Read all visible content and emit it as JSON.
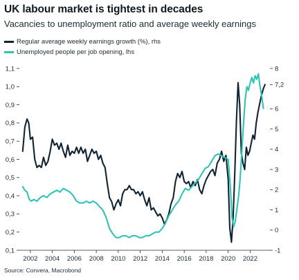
{
  "title": "UK labour market is tightest in decades",
  "subtitle": "Vacancies to unemployment ratio and average weekly earnings",
  "source": "Source: Convera, Macrobond",
  "colors": {
    "earnings": "#0f2333",
    "unemployed_per_opening": "#2ec4b6",
    "axis": "#1b2a36"
  },
  "chart_data": {
    "type": "line",
    "grid": false,
    "legend_position": "top-left",
    "x_axis": {
      "range": [
        2001.0,
        2023.8
      ],
      "ticks": [
        "2002",
        "2004",
        "2006",
        "2008",
        "2010",
        "2012",
        "2014",
        "2016",
        "2018",
        "2020",
        "2022"
      ]
    },
    "y_axis_left": {
      "range": [
        0.1,
        1.1
      ],
      "ticks": [
        "0,1",
        "0,2",
        "0,3",
        "0,4",
        "0,5",
        "0,6",
        "0,7",
        "0,8",
        "0,9",
        "1,0",
        "1,1"
      ]
    },
    "y_axis_right": {
      "range": [
        -1,
        8
      ],
      "ticks": [
        "-1",
        "0",
        "1",
        "2",
        "3",
        "4",
        "5",
        "6",
        "7,2",
        "8"
      ]
    },
    "series": [
      {
        "name": "Regular average weekly earnings growth (%), rhs",
        "axis": "right",
        "color": "#0f2333",
        "x": [
          2001.3,
          2001.5,
          2001.7,
          2001.85,
          2002.0,
          2002.2,
          2002.4,
          2002.6,
          2002.8,
          2003.0,
          2003.2,
          2003.4,
          2003.6,
          2003.8,
          2004.0,
          2004.2,
          2004.4,
          2004.6,
          2004.8,
          2005.0,
          2005.2,
          2005.4,
          2005.6,
          2005.8,
          2006.0,
          2006.2,
          2006.4,
          2006.6,
          2006.8,
          2007.0,
          2007.2,
          2007.4,
          2007.6,
          2007.8,
          2008.0,
          2008.2,
          2008.4,
          2008.6,
          2008.8,
          2009.0,
          2009.2,
          2009.4,
          2009.6,
          2009.8,
          2010.0,
          2010.2,
          2010.4,
          2010.6,
          2010.8,
          2011.0,
          2011.2,
          2011.4,
          2011.6,
          2011.8,
          2012.0,
          2012.2,
          2012.4,
          2012.6,
          2012.8,
          2013.0,
          2013.2,
          2013.4,
          2013.6,
          2013.8,
          2014.0,
          2014.2,
          2014.4,
          2014.6,
          2014.8,
          2015.0,
          2015.2,
          2015.4,
          2015.6,
          2015.8,
          2016.0,
          2016.2,
          2016.4,
          2016.6,
          2016.8,
          2017.0,
          2017.2,
          2017.4,
          2017.6,
          2017.8,
          2018.0,
          2018.2,
          2018.4,
          2018.6,
          2018.8,
          2019.0,
          2019.2,
          2019.4,
          2019.6,
          2019.8,
          2020.0,
          2020.15,
          2020.3,
          2020.45,
          2020.6,
          2020.75,
          2020.9,
          2021.05,
          2021.2,
          2021.35,
          2021.5,
          2021.65,
          2021.8,
          2021.95,
          2022.1,
          2022.25,
          2022.4,
          2022.55,
          2022.7,
          2022.85,
          2023.0,
          2023.2,
          2023.35
        ],
        "y": [
          3.9,
          5.1,
          5.5,
          5.3,
          4.5,
          4.6,
          3.5,
          3.1,
          3.2,
          3.1,
          3.6,
          3.2,
          3.4,
          3.9,
          4.5,
          4.2,
          4.3,
          4.0,
          4.3,
          3.9,
          3.6,
          4.2,
          3.7,
          3.9,
          3.8,
          4.1,
          3.8,
          4.1,
          3.8,
          4.0,
          3.4,
          3.7,
          4.0,
          3.8,
          3.9,
          3.5,
          3.7,
          3.3,
          3.1,
          2.3,
          1.6,
          1.4,
          1.0,
          1.3,
          1.5,
          1.2,
          1.8,
          2.0,
          2.0,
          2.2,
          2.0,
          2.0,
          1.8,
          1.9,
          1.7,
          1.9,
          1.5,
          1.2,
          1.6,
          1.0,
          1.1,
          0.9,
          0.7,
          0.8,
          0.6,
          0.3,
          0.5,
          0.8,
          1.3,
          1.6,
          2.4,
          2.8,
          2.6,
          2.9,
          2.4,
          2.3,
          2.4,
          2.1,
          2.4,
          2.2,
          2.5,
          2.0,
          1.8,
          2.2,
          2.5,
          2.7,
          2.9,
          3.0,
          2.7,
          3.3,
          3.5,
          3.9,
          3.4,
          3.7,
          2.5,
          0.1,
          -0.6,
          0.6,
          2.8,
          5.4,
          7.3,
          6.2,
          3.8,
          3.3,
          3.0,
          4.1,
          3.7,
          3.9,
          4.3,
          4.7,
          4.5,
          5.3,
          5.8,
          6.2,
          6.6,
          7.0,
          7.2
        ]
      },
      {
        "name": "Unemployed people per job opening, lhs",
        "axis": "left",
        "color": "#2ec4b6",
        "x": [
          2001.3,
          2001.5,
          2001.7,
          2001.9,
          2002.1,
          2002.3,
          2002.6,
          2002.9,
          2003.2,
          2003.5,
          2003.8,
          2004.1,
          2004.4,
          2004.7,
          2005.0,
          2005.3,
          2005.6,
          2005.9,
          2006.2,
          2006.5,
          2006.8,
          2007.1,
          2007.4,
          2007.7,
          2008.0,
          2008.3,
          2008.6,
          2008.9,
          2009.2,
          2009.5,
          2009.8,
          2010.1,
          2010.4,
          2010.7,
          2011.0,
          2011.3,
          2011.6,
          2011.9,
          2012.2,
          2012.5,
          2012.8,
          2013.1,
          2013.4,
          2013.7,
          2014.0,
          2014.3,
          2014.6,
          2014.9,
          2015.2,
          2015.5,
          2015.8,
          2016.1,
          2016.4,
          2016.7,
          2017.0,
          2017.3,
          2017.6,
          2017.9,
          2018.2,
          2018.5,
          2018.8,
          2019.1,
          2019.4,
          2019.7,
          2020.0,
          2020.2,
          2020.35,
          2020.5,
          2020.65,
          2020.8,
          2020.95,
          2021.1,
          2021.25,
          2021.4,
          2021.55,
          2021.7,
          2021.85,
          2022.0,
          2022.15,
          2022.3,
          2022.45,
          2022.6,
          2022.75,
          2022.9,
          2023.05,
          2023.2
        ],
        "y": [
          0.45,
          0.43,
          0.42,
          0.38,
          0.37,
          0.38,
          0.37,
          0.39,
          0.4,
          0.39,
          0.41,
          0.42,
          0.43,
          0.42,
          0.44,
          0.43,
          0.42,
          0.4,
          0.37,
          0.36,
          0.36,
          0.37,
          0.36,
          0.37,
          0.36,
          0.34,
          0.32,
          0.28,
          0.22,
          0.19,
          0.17,
          0.17,
          0.18,
          0.18,
          0.17,
          0.18,
          0.18,
          0.17,
          0.17,
          0.18,
          0.18,
          0.19,
          0.2,
          0.2,
          0.22,
          0.25,
          0.29,
          0.32,
          0.35,
          0.37,
          0.41,
          0.44,
          0.43,
          0.45,
          0.47,
          0.49,
          0.52,
          0.55,
          0.56,
          0.59,
          0.62,
          0.63,
          0.62,
          0.61,
          0.6,
          0.45,
          0.28,
          0.23,
          0.26,
          0.33,
          0.4,
          0.5,
          0.65,
          0.8,
          0.93,
          1.0,
          0.98,
          1.02,
          1.05,
          1.02,
          1.06,
          1.04,
          1.07,
          1.0,
          0.95,
          0.88
        ]
      }
    ]
  }
}
